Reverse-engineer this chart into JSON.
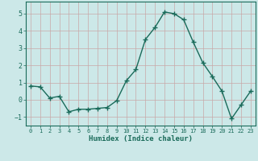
{
  "x": [
    0,
    1,
    2,
    3,
    4,
    5,
    6,
    7,
    8,
    9,
    10,
    11,
    12,
    13,
    14,
    15,
    16,
    17,
    18,
    19,
    20,
    21,
    22,
    23
  ],
  "y": [
    0.8,
    0.75,
    0.1,
    0.2,
    -0.7,
    -0.55,
    -0.55,
    -0.5,
    -0.45,
    -0.05,
    1.1,
    1.75,
    3.5,
    4.2,
    5.1,
    5.0,
    4.65,
    3.35,
    2.15,
    1.35,
    0.5,
    -1.1,
    -0.3,
    0.5
  ],
  "xlabel": "Humidex (Indice chaleur)",
  "xlim": [
    -0.5,
    23.5
  ],
  "ylim": [
    -1.5,
    5.7
  ],
  "yticks": [
    -1,
    0,
    1,
    2,
    3,
    4,
    5
  ],
  "xticks": [
    0,
    1,
    2,
    3,
    4,
    5,
    6,
    7,
    8,
    9,
    10,
    11,
    12,
    13,
    14,
    15,
    16,
    17,
    18,
    19,
    20,
    21,
    22,
    23
  ],
  "line_color": "#1a6b5a",
  "marker": "+",
  "marker_color": "#1a6b5a",
  "bg_color": "#cce8e8",
  "grid_color": "#b8d8d8",
  "axis_color": "#1a6b5a",
  "tick_label_color": "#1a6b5a",
  "xlabel_color": "#1a6b5a",
  "linewidth": 1.0,
  "markersize": 4
}
